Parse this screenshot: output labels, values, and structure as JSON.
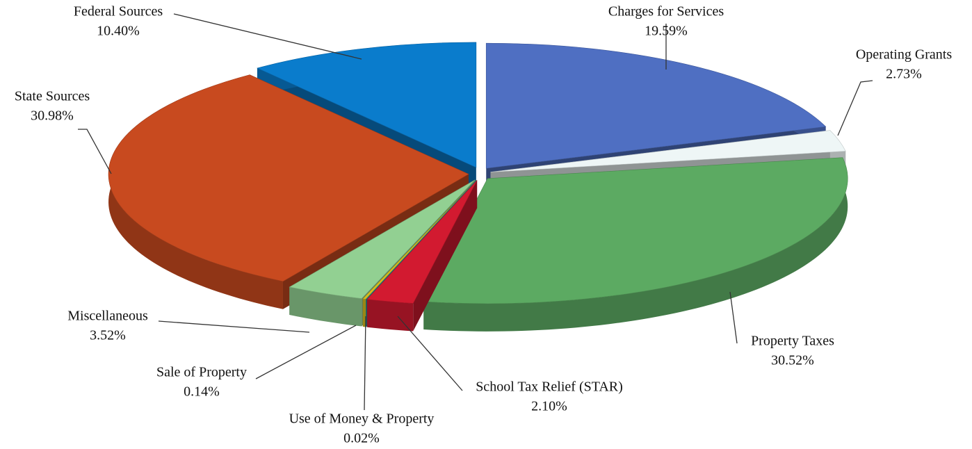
{
  "chart_data": {
    "type": "pie",
    "categories": [
      "Charges for Services",
      "Operating Grants",
      "Property Taxes",
      "School Tax Relief (STAR)",
      "Use of Money & Property",
      "Sale of Property",
      "Miscellaneous",
      "State Sources",
      "Federal Sources"
    ],
    "values": [
      19.59,
      2.73,
      30.52,
      2.1,
      0.02,
      0.14,
      3.52,
      30.98,
      10.4
    ],
    "value_labels": [
      "19.59%",
      "2.73%",
      "30.52%",
      "2.10%",
      "0.02%",
      "0.14%",
      "3.52%",
      "30.98%",
      "10.40%"
    ],
    "colors": [
      "#4f6fc2",
      "#eef6f6",
      "#5caa62",
      "#d21a30",
      "#1a9aa2",
      "#d6ba1c",
      "#92d092",
      "#c84a1f",
      "#0a7ccc"
    ]
  }
}
